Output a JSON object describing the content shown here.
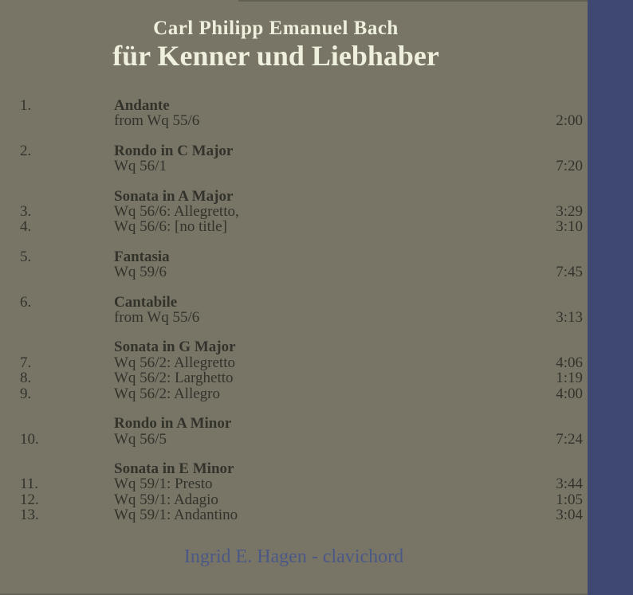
{
  "header": {
    "composer": "Carl Philipp Emanuel Bach",
    "album_title": "für Kenner und Liebhaber"
  },
  "colors": {
    "background_olive": "#787567",
    "right_stripe_blue": "#3f4870",
    "track_text": "#33332c",
    "title_cream": "#eeefdc",
    "credit_blue": "#4b5885"
  },
  "groups": [
    {
      "num": "1.",
      "title": "Andante",
      "rows": [
        {
          "num": "",
          "text": "from Wq 55/6",
          "time": "2:00"
        }
      ]
    },
    {
      "num": "2.",
      "title": "Rondo in C Major",
      "rows": [
        {
          "num": "",
          "text": "Wq 56/1",
          "time": "7:20"
        }
      ]
    },
    {
      "num": "",
      "title": "Sonata in A Major",
      "rows": [
        {
          "num": "3.",
          "text": "Wq 56/6: Allegretto,",
          "time": "3:29"
        },
        {
          "num": "4.",
          "text": "Wq 56/6: [no title]",
          "time": "3:10"
        }
      ]
    },
    {
      "num": "5.",
      "title": "Fantasia",
      "rows": [
        {
          "num": "",
          "text": "Wq 59/6",
          "time": "7:45"
        }
      ]
    },
    {
      "num": "6.",
      "title": "Cantabile",
      "rows": [
        {
          "num": "",
          "text": "from Wq 55/6",
          "time": "3:13"
        }
      ]
    },
    {
      "num": "",
      "title": "Sonata in G Major",
      "rows": [
        {
          "num": "7.",
          "text": "Wq 56/2: Allegretto",
          "time": "4:06"
        },
        {
          "num": "8.",
          "text": "Wq 56/2: Larghetto",
          "time": "1:19"
        },
        {
          "num": "9.",
          "text": "Wq 56/2: Allegro",
          "time": "4:00"
        }
      ]
    },
    {
      "num": "",
      "title": "Rondo in A Minor",
      "rows": [
        {
          "num": "10.",
          "text": "Wq 56/5",
          "time": "7:24"
        }
      ]
    },
    {
      "num": "",
      "title": "Sonata in E Minor",
      "rows": [
        {
          "num": "11.",
          "text": "Wq 59/1: Presto",
          "time": "3:44"
        },
        {
          "num": "12.",
          "text": "Wq 59/1: Adagio",
          "time": "1:05"
        },
        {
          "num": "13.",
          "text": "Wq 59/1: Andantino",
          "time": "3:04"
        }
      ]
    }
  ],
  "credit": "Ingrid E. Hagen - clavichord"
}
